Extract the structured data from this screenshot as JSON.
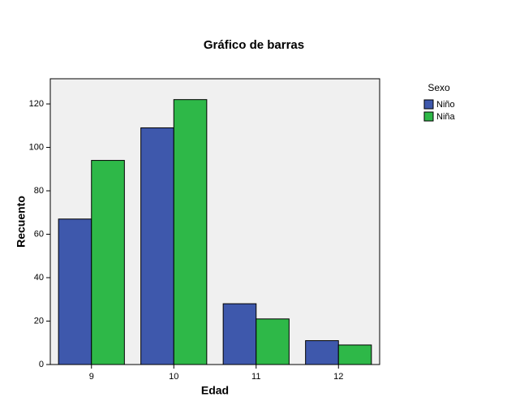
{
  "chart_data": {
    "type": "bar",
    "title": "Gráfico de barras",
    "x_label": "Edad",
    "y_label": "Recuento",
    "categories": [
      "9",
      "10",
      "11",
      "12"
    ],
    "legend_title": "Sexo",
    "series": [
      {
        "name": "Niño",
        "color": "#3e58ac",
        "values": [
          67,
          109,
          28,
          11
        ]
      },
      {
        "name": "Niña",
        "color": "#2eb848",
        "values": [
          94,
          122,
          21,
          9
        ]
      }
    ],
    "ylim": [
      0,
      131.6
    ],
    "yticks": [
      0,
      20,
      40,
      60,
      80,
      100,
      120
    ],
    "legend": "right"
  }
}
